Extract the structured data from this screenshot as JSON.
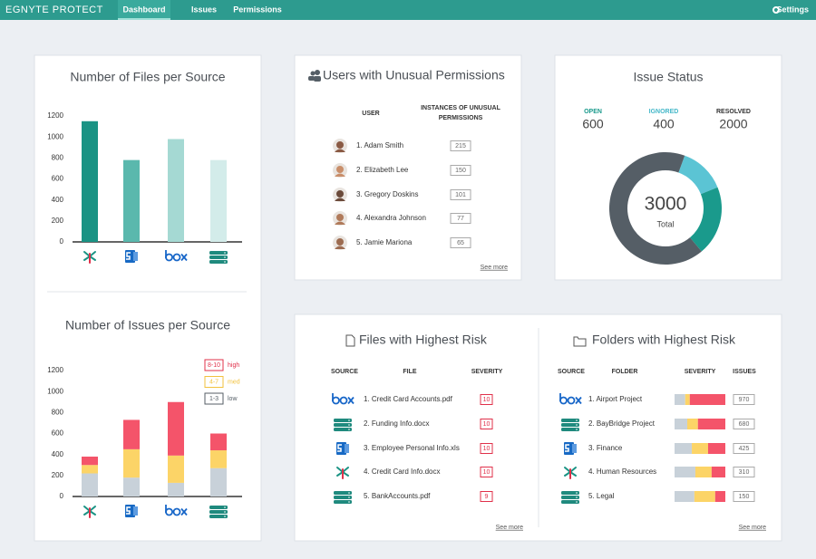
{
  "nav": {
    "logo": "EGNYTE PROTECT",
    "items": [
      "Dashboard",
      "Issues",
      "Permissions"
    ],
    "settings": "Settings"
  },
  "files_per_source": {
    "type": "bar",
    "title": "Number of Files per Source",
    "categories": [
      null,
      null,
      null,
      null
    ],
    "values": [
      1150,
      780,
      980,
      780
    ],
    "colors": [
      "#1a9384",
      "#5ab8ad",
      "#a5d9d3",
      "#d3ecea"
    ],
    "ylim": [
      0,
      1200
    ],
    "yticks": [
      0,
      200,
      400,
      600,
      800,
      1000,
      1200
    ]
  },
  "issues_per_source": {
    "type": "stacked_bar",
    "title": "Number of Issues per Source",
    "categories": [
      null,
      null,
      null,
      null
    ],
    "series": [
      {
        "name": "low",
        "range": "1-3",
        "color": "#c8d1d9",
        "values": [
          220,
          180,
          130,
          270
        ]
      },
      {
        "name": "med",
        "range": "4-7",
        "color": "#fcd467",
        "values": [
          80,
          270,
          260,
          170
        ]
      },
      {
        "name": "high",
        "range": "8-10",
        "color": "#f4546a",
        "values": [
          80,
          280,
          510,
          160
        ]
      }
    ],
    "ylim": [
      0,
      1200
    ],
    "yticks": [
      0,
      200,
      400,
      600,
      800,
      1000,
      1200
    ]
  },
  "unusual_permissions": {
    "title": "Users with Unusual Permissions",
    "columns": [
      "USER",
      "INSTANCES OF UNUSUAL PERMISSIONS"
    ],
    "rows": [
      [
        "1. Adam Smith",
        215
      ],
      [
        "2. Elizabeth Lee",
        150
      ],
      [
        "3. Gregory Doskins",
        101
      ],
      [
        "4. Alexandra Johnson",
        77
      ],
      [
        "5. Jamie Mariona",
        65
      ]
    ],
    "see_more": "See more"
  },
  "issue_status": {
    "type": "donut",
    "title": "Issue Status",
    "series": [
      {
        "name": "OPEN",
        "value": 600,
        "color": "#1a9a8c"
      },
      {
        "name": "IGNORED",
        "value": 400,
        "color": "#5bc4d4"
      },
      {
        "name": "RESOLVED",
        "value": 2000,
        "color": "#555e66"
      }
    ],
    "total": 3000,
    "total_label": "Total"
  },
  "files_risk": {
    "title": "Files with Highest Risk",
    "columns": [
      "SOURCE",
      "FILE",
      "SEVERITY"
    ],
    "rows": [
      [
        "1. Credit Card Accounts.pdf",
        10
      ],
      [
        "2. Funding Info.docx",
        10
      ],
      [
        "3. Employee Personal Info.xls",
        10
      ],
      [
        "4. Credit Card Info.docx",
        10
      ],
      [
        "5. BankAccounts.pdf",
        9
      ]
    ],
    "see_more": "See more"
  },
  "folders_risk": {
    "title": "Folders with Highest Risk",
    "columns": [
      "SOURCE",
      "FOLDER",
      "SEVERITY",
      "ISSUES"
    ],
    "severity_colors": [
      "#c8d1d9",
      "#fcd467",
      "#f4546a"
    ],
    "rows": [
      {
        "name": "1. Airport Project",
        "severity": [
          21,
          9,
          70
        ],
        "issues": 970
      },
      {
        "name": "2. BayBridge Project",
        "severity": [
          25,
          21,
          54
        ],
        "issues": 680
      },
      {
        "name": "3. Finance",
        "severity": [
          34,
          32,
          34
        ],
        "issues": 425
      },
      {
        "name": "4. Human Resources",
        "severity": [
          41,
          32,
          27
        ],
        "issues": 310
      },
      {
        "name": "5. Legal",
        "severity": [
          39,
          41,
          20
        ],
        "issues": 150
      }
    ],
    "see_more": "See more"
  }
}
